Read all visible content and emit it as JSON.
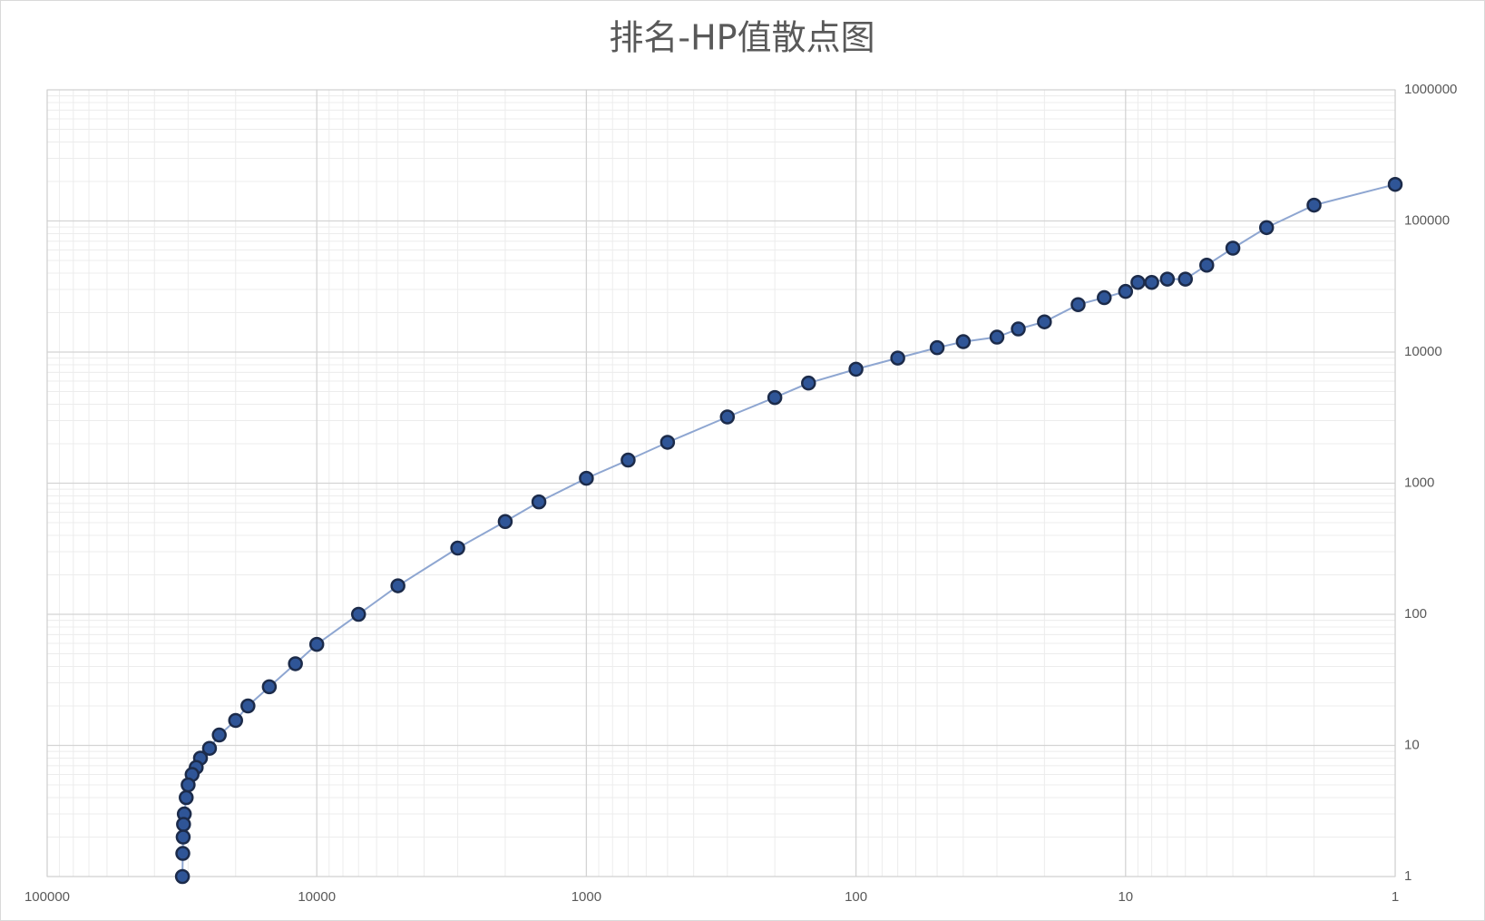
{
  "chart_data": {
    "type": "scatter",
    "title": "排名-HP值散点图",
    "x": [
      1,
      2,
      3,
      4,
      5,
      6,
      7,
      8,
      9,
      10,
      12,
      15,
      20,
      25,
      30,
      40,
      50,
      70,
      100,
      150,
      200,
      300,
      500,
      700,
      1000,
      1500,
      2000,
      3000,
      5000,
      7000,
      10000,
      12000,
      15000,
      18000,
      20000,
      23000,
      25000,
      27000,
      28000,
      29000,
      30000,
      30500,
      31000,
      31200,
      31300,
      31400,
      31500
    ],
    "values": [
      190000,
      132000,
      89000,
      62000,
      46000,
      36000,
      36000,
      34000,
      34000,
      29000,
      26000,
      23000,
      17000,
      15000,
      13000,
      12000,
      10800,
      9000,
      7400,
      5800,
      4500,
      3200,
      2050,
      1500,
      1090,
      720,
      510,
      320,
      165,
      100,
      59,
      42,
      28,
      20,
      15.5,
      12,
      9.5,
      8,
      6.8,
      6,
      5,
      4,
      3,
      2.5,
      2,
      1.5,
      1
    ],
    "color": "#2f5597",
    "xlim": [
      100000,
      1
    ],
    "xticks": [
      100000,
      10000,
      1000,
      100,
      10,
      1
    ],
    "ylim": [
      1,
      1000000
    ],
    "yticks": [
      1,
      10,
      100,
      1000,
      10000,
      100000,
      1000000
    ],
    "log_x": true,
    "log_y": true,
    "grid": true,
    "minor_grid": true,
    "y_axis_side": "right"
  }
}
